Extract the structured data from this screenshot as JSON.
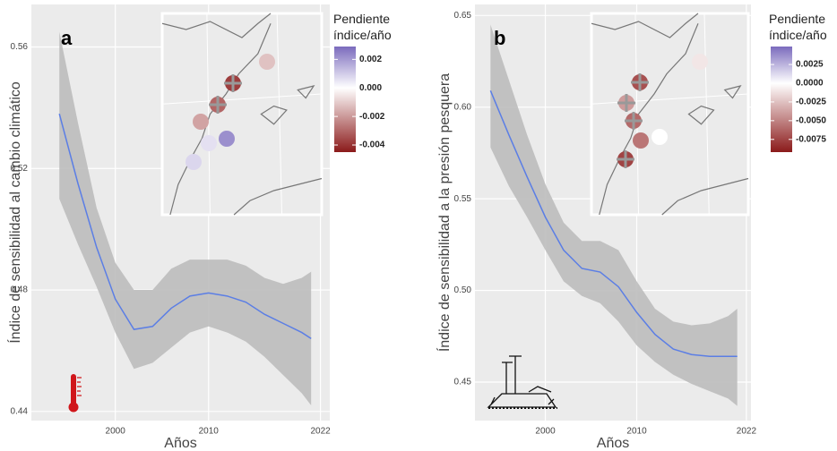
{
  "chart_data": [
    {
      "type": "line",
      "title": "a",
      "y_label": "Índice de sensibilidad al cambio climático",
      "x_label": "Años",
      "x": [
        1994,
        1996,
        1998,
        2000,
        2002,
        2004,
        2006,
        2008,
        2010,
        2012,
        2014,
        2016,
        2018,
        2020,
        2021
      ],
      "values": [
        0.538,
        0.515,
        0.494,
        0.477,
        0.467,
        0.468,
        0.474,
        0.478,
        0.479,
        0.478,
        0.476,
        0.472,
        0.469,
        0.466,
        0.464
      ],
      "ci_upper": [
        0.565,
        0.535,
        0.507,
        0.489,
        0.48,
        0.48,
        0.487,
        0.49,
        0.49,
        0.49,
        0.488,
        0.484,
        0.482,
        0.484,
        0.486
      ],
      "ci_lower": [
        0.51,
        0.495,
        0.481,
        0.466,
        0.454,
        0.456,
        0.461,
        0.466,
        0.468,
        0.466,
        0.463,
        0.458,
        0.452,
        0.446,
        0.442
      ],
      "color": "#5b7ee5",
      "band_color": "#bdbdbd",
      "xlim": [
        1991,
        2023
      ],
      "xticks": [
        2000,
        2010,
        2022
      ],
      "ylim": [
        0.437,
        0.574
      ],
      "yticks": [
        0.44,
        0.48,
        0.52,
        0.56
      ],
      "grid": true,
      "inset": {
        "legend_title": "Pendiente índice/año",
        "values": [
          -0.0012,
          -0.0038,
          -0.003,
          -0.0018,
          0.0022,
          0.0006,
          0.0008
        ],
        "crossed": [
          false,
          true,
          true,
          false,
          false,
          false,
          false
        ],
        "colorbar_lim": [
          -0.0045,
          0.0029
        ],
        "colorbar_ticks": [
          0.002,
          {
            "value": 0,
            "label": "0.000"
          },
          -0.002,
          -0.004
        ],
        "colors": [
          "#8b1a1a",
          "#ffffff",
          "#7b6bbd"
        ]
      }
    },
    {
      "type": "line",
      "title": "b",
      "y_label": "Índice de sensibilidad a la presión pesquera",
      "x_label": "Años",
      "x": [
        1994,
        1996,
        1998,
        2000,
        2002,
        2004,
        2006,
        2008,
        2010,
        2012,
        2014,
        2016,
        2018,
        2020,
        2021
      ],
      "values": [
        0.609,
        0.585,
        0.562,
        0.54,
        0.522,
        0.512,
        0.51,
        0.502,
        0.488,
        0.476,
        0.468,
        0.465,
        0.464,
        0.464,
        0.464
      ],
      "ci_upper": [
        0.645,
        0.615,
        0.585,
        0.558,
        0.537,
        0.527,
        0.527,
        0.522,
        0.505,
        0.49,
        0.483,
        0.481,
        0.482,
        0.486,
        0.49
      ],
      "ci_lower": [
        0.578,
        0.557,
        0.54,
        0.522,
        0.505,
        0.497,
        0.493,
        0.483,
        0.47,
        0.461,
        0.454,
        0.449,
        0.445,
        0.441,
        0.437
      ],
      "color": "#5b7ee5",
      "band_color": "#bdbdbd",
      "xlim": [
        1992.3,
        2022.5
      ],
      "xticks": [
        2000,
        2010,
        2022
      ],
      "ylim": [
        0.429,
        0.656
      ],
      "yticks": [
        0.45,
        {
          "value": 0.5,
          "label": "0.50"
        },
        0.55,
        {
          "value": 0.6,
          "label": "0.60"
        },
        0.65
      ],
      "grid": true,
      "inset": {
        "legend_title": "Pendiente índice/año",
        "values": [
          -0.001,
          -0.007,
          -0.004,
          -0.006,
          -0.0055,
          0,
          -0.0075
        ],
        "crossed": [
          false,
          true,
          true,
          true,
          false,
          false,
          true
        ],
        "colorbar_lim": [
          -0.0092,
          0.0049
        ],
        "colorbar_ticks": [
          0.0025,
          {
            "value": 0,
            "label": "0.0000"
          },
          -0.0025,
          {
            "value": -0.005,
            "label": "-0.0050"
          },
          {
            "value": -0.0075,
            "label": "-0.0075"
          }
        ],
        "colors": [
          "#8b1a1a",
          "#ffffff",
          "#7b6bbd"
        ]
      }
    }
  ]
}
